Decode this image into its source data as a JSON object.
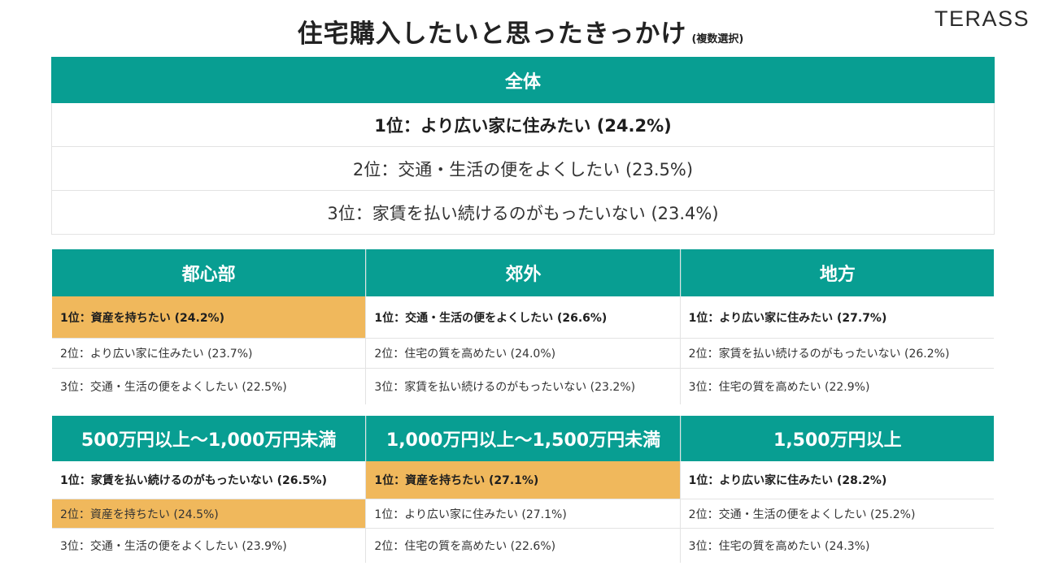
{
  "title": {
    "main": "住宅購入したいと思ったきっかけ",
    "note": "(複数選択)"
  },
  "logo": "TERASS",
  "overall": {
    "header": "全体",
    "items": [
      "1位：より広い家に住みたい (24.2%)",
      "2位：交通・生活の便をよくしたい (23.5%)",
      "3位：家賃を払い続けるのがもったいない (23.4%)"
    ]
  },
  "regions": [
    {
      "header": "都心部",
      "items": [
        {
          "text": "1位：資産を持ちたい (24.2%)",
          "highlight": true
        },
        {
          "text": "2位：より広い家に住みたい (23.7%)",
          "highlight": false
        },
        {
          "text": "3位：交通・生活の便をよくしたい (22.5%)",
          "highlight": false
        }
      ]
    },
    {
      "header": "郊外",
      "items": [
        {
          "text": "1位：交通・生活の便をよくしたい (26.6%)",
          "highlight": false
        },
        {
          "text": "2位：住宅の質を高めたい (24.0%)",
          "highlight": false
        },
        {
          "text": "3位：家賃を払い続けるのがもったいない (23.2%)",
          "highlight": false
        }
      ]
    },
    {
      "header": "地方",
      "items": [
        {
          "text": "1位：より広い家に住みたい (27.7%)",
          "highlight": false
        },
        {
          "text": "2位：家賃を払い続けるのがもったいない (26.2%)",
          "highlight": false
        },
        {
          "text": "3位：住宅の質を高めたい (22.9%)",
          "highlight": false
        }
      ]
    }
  ],
  "incomes": [
    {
      "header": "500万円以上～1,000万円未満",
      "items": [
        {
          "text": "1位：家賃を払い続けるのがもったいない (26.5%)",
          "highlight": false
        },
        {
          "text": "2位：資産を持ちたい (24.5%)",
          "highlight": true
        },
        {
          "text": "3位：交通・生活の便をよくしたい (23.9%)",
          "highlight": false
        }
      ]
    },
    {
      "header": "1,000万円以上～1,500万円未満",
      "items": [
        {
          "text": "1位：資産を持ちたい (27.1%)",
          "highlight": true
        },
        {
          "text": "1位：より広い家に住みたい (27.1%)",
          "highlight": false
        },
        {
          "text": "2位：住宅の質を高めたい (22.6%)",
          "highlight": false
        }
      ]
    },
    {
      "header": "1,500万円以上",
      "items": [
        {
          "text": "1位：より広い家に住みたい (28.2%)",
          "highlight": false
        },
        {
          "text": "2位：交通・生活の便をよくしたい (25.2%)",
          "highlight": false
        },
        {
          "text": "3位：住宅の質を高めたい (24.3%)",
          "highlight": false
        }
      ]
    }
  ],
  "colors": {
    "teal": "#089e92",
    "highlight": "#f0b85c"
  }
}
